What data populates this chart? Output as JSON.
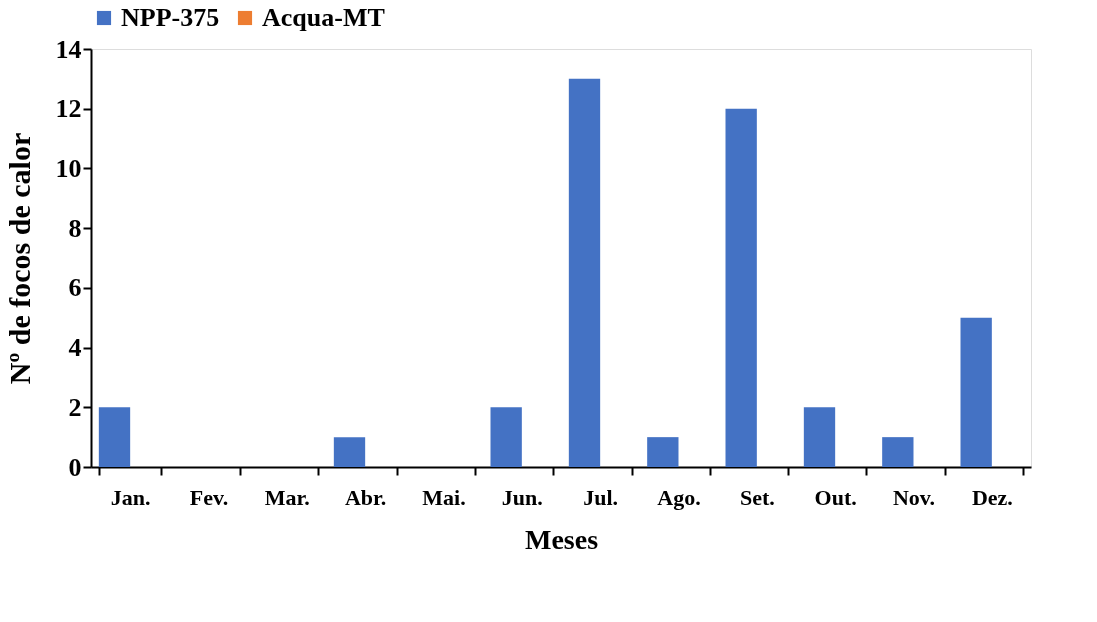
{
  "chart_data": {
    "type": "bar",
    "xlabel": "Meses",
    "ylabel": "Nº de focos de calor",
    "categories": [
      "Jan.",
      "Fev.",
      "Mar.",
      "Abr.",
      "Mai.",
      "Jun.",
      "Jul.",
      "Ago.",
      "Set.",
      "Out.",
      "Nov.",
      "Dez."
    ],
    "series": [
      {
        "name": "NPP-375",
        "color": "#4472c4",
        "values": [
          2,
          0,
          0,
          1,
          0,
          2,
          13,
          1,
          12,
          2,
          1,
          5
        ]
      },
      {
        "name": "Acqua-MT",
        "color": "#ed7d31",
        "values": [
          0,
          0,
          0,
          0,
          0,
          0,
          0,
          0,
          0,
          0,
          0,
          0
        ]
      }
    ],
    "ylim": [
      0,
      14
    ],
    "yticks": [
      0,
      2,
      4,
      6,
      8,
      10,
      12,
      14
    ],
    "grid": false,
    "legend": "top"
  }
}
